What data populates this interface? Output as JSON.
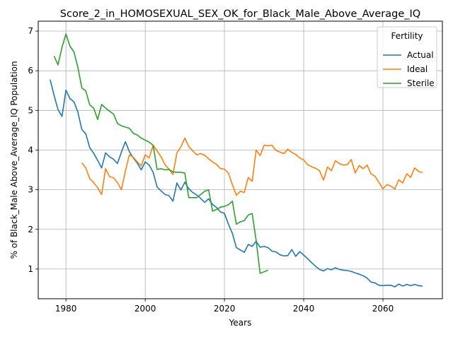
{
  "chart_data": {
    "type": "line",
    "title": "Score_2_in_HOMOSEXUAL_SEX_OK_for_Black_Male_Above_Average_IQ",
    "xlabel": "Years",
    "ylabel": "% of Black_Male Above_Average_IQ Population",
    "xlim": [
      1973,
      2075
    ],
    "ylim": [
      0.25,
      7.25
    ],
    "xticks": [
      1980,
      2000,
      2020,
      2040,
      2060
    ],
    "yticks": [
      1,
      2,
      3,
      4,
      5,
      6,
      7
    ],
    "grid": true,
    "legend": {
      "title": "Fertility",
      "placement": "top-right"
    },
    "series": [
      {
        "name": "Actual",
        "color": "#1f77b4",
        "points": [
          [
            1976,
            5.78
          ],
          [
            1977,
            5.38
          ],
          [
            1978,
            5.02
          ],
          [
            1979,
            4.85
          ],
          [
            1980,
            5.51
          ],
          [
            1981,
            5.3
          ],
          [
            1982,
            5.22
          ],
          [
            1983,
            4.96
          ],
          [
            1984,
            4.52
          ],
          [
            1985,
            4.41
          ],
          [
            1986,
            4.06
          ],
          [
            1987,
            3.92
          ],
          [
            1988,
            3.74
          ],
          [
            1989,
            3.55
          ],
          [
            1990,
            3.93
          ],
          [
            1991,
            3.83
          ],
          [
            1992,
            3.77
          ],
          [
            1993,
            3.66
          ],
          [
            1994,
            3.95
          ],
          [
            1995,
            4.21
          ],
          [
            1996,
            3.96
          ],
          [
            1997,
            3.8
          ],
          [
            1998,
            3.67
          ],
          [
            1999,
            3.5
          ],
          [
            2000,
            3.7
          ],
          [
            2001,
            3.62
          ],
          [
            2002,
            3.44
          ],
          [
            2003,
            3.07
          ],
          [
            2004,
            2.97
          ],
          [
            2005,
            2.88
          ],
          [
            2006,
            2.85
          ],
          [
            2007,
            2.71
          ],
          [
            2008,
            3.17
          ],
          [
            2009,
            2.99
          ],
          [
            2010,
            3.19
          ],
          [
            2011,
            3.02
          ],
          [
            2012,
            2.93
          ],
          [
            2013,
            2.87
          ],
          [
            2014,
            2.78
          ],
          [
            2015,
            2.68
          ],
          [
            2016,
            2.77
          ],
          [
            2017,
            2.63
          ],
          [
            2018,
            2.55
          ],
          [
            2019,
            2.44
          ],
          [
            2020,
            2.4
          ],
          [
            2021,
            2.13
          ],
          [
            2022,
            1.9
          ],
          [
            2023,
            1.54
          ],
          [
            2024,
            1.48
          ],
          [
            2025,
            1.42
          ],
          [
            2026,
            1.62
          ],
          [
            2027,
            1.57
          ],
          [
            2028,
            1.7
          ],
          [
            2029,
            1.55
          ],
          [
            2030,
            1.57
          ],
          [
            2031,
            1.54
          ],
          [
            2032,
            1.45
          ],
          [
            2033,
            1.43
          ],
          [
            2034,
            1.36
          ],
          [
            2035,
            1.33
          ],
          [
            2036,
            1.34
          ],
          [
            2037,
            1.49
          ],
          [
            2038,
            1.32
          ],
          [
            2039,
            1.44
          ],
          [
            2040,
            1.35
          ],
          [
            2041,
            1.26
          ],
          [
            2042,
            1.16
          ],
          [
            2043,
            1.07
          ],
          [
            2044,
            0.99
          ],
          [
            2045,
            0.95
          ],
          [
            2046,
            1.01
          ],
          [
            2047,
            0.98
          ],
          [
            2048,
            1.03
          ],
          [
            2049,
            0.99
          ],
          [
            2050,
            0.97
          ],
          [
            2051,
            0.96
          ],
          [
            2052,
            0.94
          ],
          [
            2053,
            0.9
          ],
          [
            2054,
            0.87
          ],
          [
            2055,
            0.83
          ],
          [
            2056,
            0.77
          ],
          [
            2057,
            0.67
          ],
          [
            2058,
            0.65
          ],
          [
            2059,
            0.59
          ],
          [
            2060,
            0.58
          ],
          [
            2061,
            0.59
          ],
          [
            2062,
            0.59
          ],
          [
            2063,
            0.55
          ],
          [
            2064,
            0.62
          ],
          [
            2065,
            0.57
          ],
          [
            2066,
            0.61
          ],
          [
            2067,
            0.58
          ],
          [
            2068,
            0.61
          ],
          [
            2069,
            0.58
          ],
          [
            2070,
            0.57
          ]
        ]
      },
      {
        "name": "Ideal",
        "color": "#ff7f0e",
        "points": [
          [
            1984,
            3.68
          ],
          [
            1985,
            3.55
          ],
          [
            1986,
            3.28
          ],
          [
            1987,
            3.18
          ],
          [
            1988,
            3.05
          ],
          [
            1989,
            2.88
          ],
          [
            1990,
            3.53
          ],
          [
            1991,
            3.33
          ],
          [
            1992,
            3.3
          ],
          [
            1993,
            3.18
          ],
          [
            1994,
            3.0
          ],
          [
            1995,
            3.47
          ],
          [
            1996,
            3.88
          ],
          [
            1997,
            3.82
          ],
          [
            1998,
            3.7
          ],
          [
            1999,
            3.6
          ],
          [
            2000,
            3.88
          ],
          [
            2001,
            3.8
          ],
          [
            2002,
            4.12
          ],
          [
            2003,
            3.98
          ],
          [
            2004,
            3.83
          ],
          [
            2005,
            3.63
          ],
          [
            2006,
            3.52
          ],
          [
            2007,
            3.38
          ],
          [
            2008,
            3.93
          ],
          [
            2009,
            4.08
          ],
          [
            2010,
            4.3
          ],
          [
            2011,
            4.09
          ],
          [
            2012,
            3.98
          ],
          [
            2013,
            3.88
          ],
          [
            2014,
            3.91
          ],
          [
            2015,
            3.87
          ],
          [
            2016,
            3.78
          ],
          [
            2017,
            3.7
          ],
          [
            2018,
            3.64
          ],
          [
            2019,
            3.53
          ],
          [
            2020,
            3.52
          ],
          [
            2021,
            3.42
          ],
          [
            2022,
            3.13
          ],
          [
            2023,
            2.86
          ],
          [
            2024,
            2.96
          ],
          [
            2025,
            2.93
          ],
          [
            2026,
            3.31
          ],
          [
            2027,
            3.21
          ],
          [
            2028,
            4.0
          ],
          [
            2029,
            3.86
          ],
          [
            2030,
            4.12
          ],
          [
            2031,
            4.11
          ],
          [
            2032,
            4.12
          ],
          [
            2033,
            3.99
          ],
          [
            2034,
            3.95
          ],
          [
            2035,
            3.91
          ],
          [
            2036,
            4.02
          ],
          [
            2037,
            3.94
          ],
          [
            2038,
            3.89
          ],
          [
            2039,
            3.8
          ],
          [
            2040,
            3.75
          ],
          [
            2041,
            3.63
          ],
          [
            2042,
            3.58
          ],
          [
            2043,
            3.54
          ],
          [
            2044,
            3.48
          ],
          [
            2045,
            3.24
          ],
          [
            2046,
            3.57
          ],
          [
            2047,
            3.48
          ],
          [
            2048,
            3.73
          ],
          [
            2049,
            3.66
          ],
          [
            2050,
            3.62
          ],
          [
            2051,
            3.63
          ],
          [
            2052,
            3.76
          ],
          [
            2053,
            3.42
          ],
          [
            2054,
            3.61
          ],
          [
            2055,
            3.53
          ],
          [
            2056,
            3.62
          ],
          [
            2057,
            3.4
          ],
          [
            2058,
            3.34
          ],
          [
            2059,
            3.18
          ],
          [
            2060,
            3.02
          ],
          [
            2061,
            3.13
          ],
          [
            2062,
            3.09
          ],
          [
            2063,
            3.02
          ],
          [
            2064,
            3.25
          ],
          [
            2065,
            3.17
          ],
          [
            2066,
            3.4
          ],
          [
            2067,
            3.31
          ],
          [
            2068,
            3.55
          ],
          [
            2069,
            3.46
          ],
          [
            2070,
            3.43
          ]
        ]
      },
      {
        "name": "Sterile",
        "color": "#2ca02c",
        "points": [
          [
            1977,
            6.37
          ],
          [
            1978,
            6.15
          ],
          [
            1979,
            6.59
          ],
          [
            1980,
            6.93
          ],
          [
            1981,
            6.62
          ],
          [
            1982,
            6.48
          ],
          [
            1983,
            6.09
          ],
          [
            1984,
            5.57
          ],
          [
            1985,
            5.49
          ],
          [
            1986,
            5.14
          ],
          [
            1987,
            5.06
          ],
          [
            1988,
            4.77
          ],
          [
            1989,
            5.15
          ],
          [
            1990,
            5.06
          ],
          [
            1991,
            4.98
          ],
          [
            1992,
            4.91
          ],
          [
            1993,
            4.67
          ],
          [
            1994,
            4.61
          ],
          [
            1995,
            4.58
          ],
          [
            1996,
            4.55
          ],
          [
            1997,
            4.42
          ],
          [
            1998,
            4.38
          ],
          [
            1999,
            4.3
          ],
          [
            2000,
            4.25
          ],
          [
            2001,
            4.2
          ],
          [
            2002,
            4.12
          ],
          [
            2003,
            3.51
          ],
          [
            2004,
            3.53
          ],
          [
            2005,
            3.5
          ],
          [
            2006,
            3.51
          ],
          [
            2007,
            3.45
          ],
          [
            2008,
            3.44
          ],
          [
            2009,
            3.44
          ],
          [
            2010,
            3.42
          ],
          [
            2011,
            2.8
          ],
          [
            2012,
            2.8
          ],
          [
            2013,
            2.8
          ],
          [
            2014,
            2.88
          ],
          [
            2015,
            2.96
          ],
          [
            2016,
            3.0
          ],
          [
            2017,
            2.46
          ],
          [
            2018,
            2.5
          ],
          [
            2019,
            2.56
          ],
          [
            2020,
            2.58
          ],
          [
            2021,
            2.62
          ],
          [
            2022,
            2.71
          ],
          [
            2023,
            2.13
          ],
          [
            2024,
            2.19
          ],
          [
            2025,
            2.22
          ],
          [
            2026,
            2.36
          ],
          [
            2027,
            2.4
          ],
          [
            2028,
            1.72
          ],
          [
            2029,
            0.89
          ],
          [
            2030,
            0.93
          ],
          [
            2031,
            0.97
          ]
        ]
      }
    ]
  }
}
